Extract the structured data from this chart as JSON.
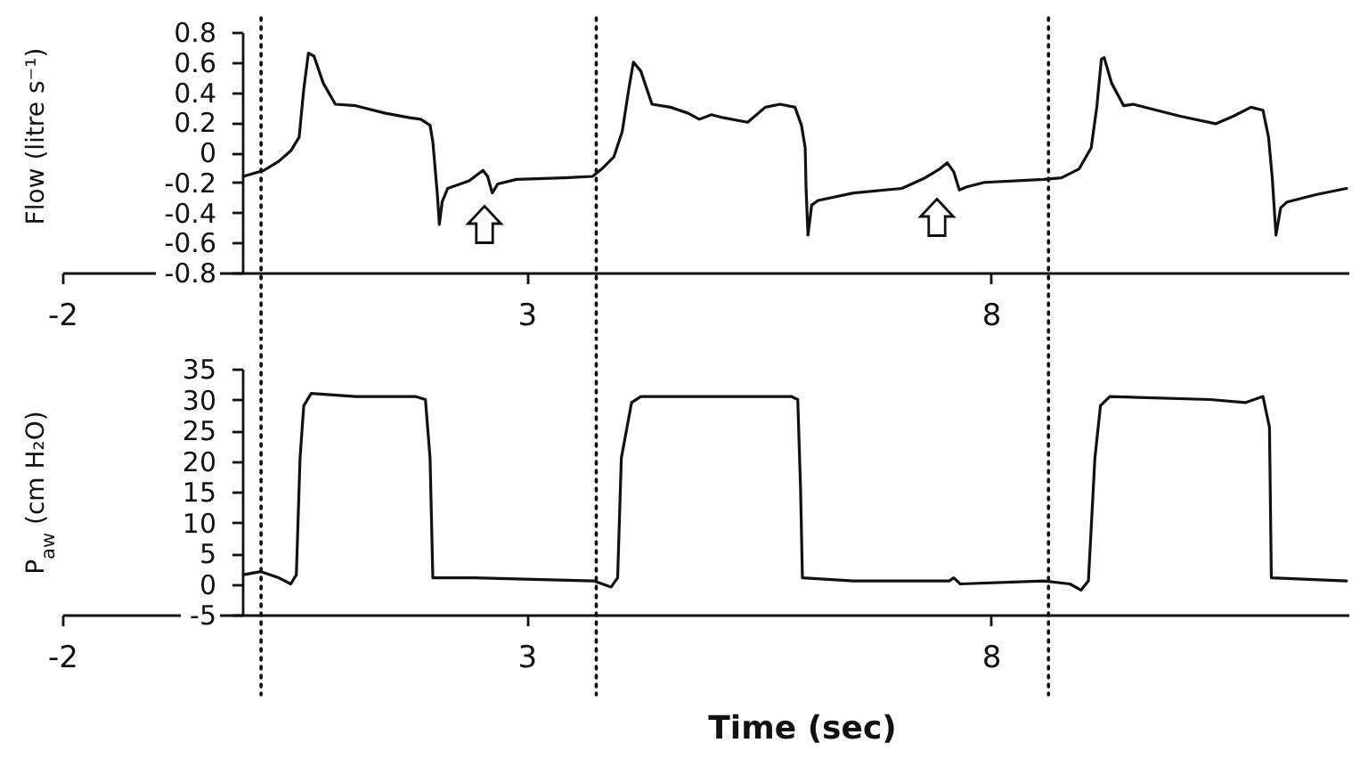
{
  "chart_data": [
    {
      "type": "line",
      "ylabel": "Flow (litre s⁻¹)",
      "color": "#111111",
      "xlim": [
        -2,
        11.85
      ],
      "xticks": [
        -2,
        3,
        8
      ],
      "ylim": [
        -0.8,
        0.8
      ],
      "yticks": [
        -0.8,
        -0.6,
        -0.4,
        -0.2,
        0,
        0.2,
        0.4,
        0.6,
        0.8
      ],
      "x": [
        -0.05,
        0.17,
        0.33,
        0.46,
        0.55,
        0.6,
        0.65,
        0.71,
        0.81,
        0.94,
        1.16,
        1.48,
        1.74,
        1.86,
        1.96,
        1.99,
        2.04,
        2.06,
        2.09,
        2.15,
        2.38,
        2.53,
        2.58,
        2.63,
        2.69,
        2.89,
        3.4,
        3.71,
        3.81,
        3.94,
        4.03,
        4.1,
        4.15,
        4.23,
        4.35,
        4.55,
        4.74,
        4.86,
        4.99,
        5.12,
        5.38,
        5.57,
        5.73,
        5.89,
        5.96,
        6.0,
        6.01,
        6.03,
        6.07,
        6.14,
        6.52,
        7.04,
        7.29,
        7.45,
        7.53,
        7.6,
        7.66,
        7.74,
        7.93,
        8.57,
        8.76,
        8.95,
        9.08,
        9.14,
        9.19,
        9.22,
        9.3,
        9.43,
        9.53,
        10.04,
        10.42,
        10.61,
        10.8,
        10.93,
        10.99,
        11.03,
        11.07,
        11.12,
        11.19,
        11.51,
        11.83
      ],
      "values": [
        -0.16,
        -0.12,
        -0.06,
        0.01,
        0.1,
        0.42,
        0.66,
        0.64,
        0.46,
        0.32,
        0.31,
        0.26,
        0.23,
        0.22,
        0.18,
        0.07,
        -0.29,
        -0.48,
        -0.33,
        -0.24,
        -0.19,
        -0.12,
        -0.16,
        -0.27,
        -0.21,
        -0.18,
        -0.17,
        -0.16,
        -0.11,
        -0.03,
        0.14,
        0.42,
        0.6,
        0.54,
        0.32,
        0.3,
        0.26,
        0.22,
        0.25,
        0.23,
        0.2,
        0.3,
        0.32,
        0.3,
        0.18,
        0.03,
        -0.25,
        -0.55,
        -0.35,
        -0.32,
        -0.27,
        -0.24,
        -0.17,
        -0.11,
        -0.07,
        -0.13,
        -0.25,
        -0.23,
        -0.2,
        -0.18,
        -0.17,
        -0.11,
        0.03,
        0.3,
        0.62,
        0.63,
        0.46,
        0.31,
        0.32,
        0.24,
        0.19,
        0.24,
        0.3,
        0.28,
        0.1,
        -0.17,
        -0.55,
        -0.37,
        -0.33,
        -0.28,
        -0.24
      ],
      "ref_lines": [
        {
          "axis": "x",
          "value": 0.14,
          "line_style": "dotted",
          "color": "#111111"
        },
        {
          "axis": "x",
          "value": 3.75,
          "line_style": "dotted",
          "color": "#111111"
        },
        {
          "axis": "x",
          "value": 8.62,
          "line_style": "dotted",
          "color": "#111111"
        }
      ]
    },
    {
      "type": "line",
      "xlabel": "Time (sec)",
      "ylabel": "P$_{aw}$ (cm H₂O)",
      "color": "#111111",
      "xlim": [
        -2,
        11.85
      ],
      "xticks": [
        -2,
        3,
        8
      ],
      "ylim": [
        -5,
        35
      ],
      "yticks": [
        -5,
        0,
        5,
        10,
        15,
        20,
        25,
        30,
        35
      ],
      "x": [
        -0.05,
        0.14,
        0.33,
        0.46,
        0.52,
        0.56,
        0.6,
        0.68,
        1.16,
        1.8,
        1.91,
        1.96,
        1.99,
        2.44,
        3.72,
        3.91,
        3.98,
        4.02,
        4.13,
        4.23,
        5.85,
        5.92,
        5.95,
        5.97,
        6.52,
        7.55,
        7.6,
        7.67,
        8.57,
        8.85,
        8.97,
        9.05,
        9.12,
        9.18,
        9.28,
        10.36,
        10.74,
        10.93,
        11.0,
        11.02,
        11.83
      ],
      "values": [
        1.5,
        2,
        1,
        0,
        1.5,
        20.5,
        29,
        31,
        30.5,
        30.5,
        30,
        20.5,
        1,
        1,
        0.5,
        -0.5,
        1,
        20.5,
        29.5,
        30.5,
        30.5,
        30,
        15.5,
        1,
        0.5,
        0.5,
        1,
        0,
        0.5,
        0,
        -1,
        0.5,
        20.5,
        29,
        30.5,
        30,
        29.5,
        30.5,
        25.5,
        1,
        0.5
      ],
      "ref_lines": [
        {
          "axis": "x",
          "value": 0.14,
          "line_style": "dotted",
          "color": "#111111"
        },
        {
          "axis": "x",
          "value": 3.75,
          "line_style": "dotted",
          "color": "#111111"
        },
        {
          "axis": "x",
          "value": 8.62,
          "line_style": "dotted",
          "color": "#111111"
        }
      ]
    }
  ]
}
